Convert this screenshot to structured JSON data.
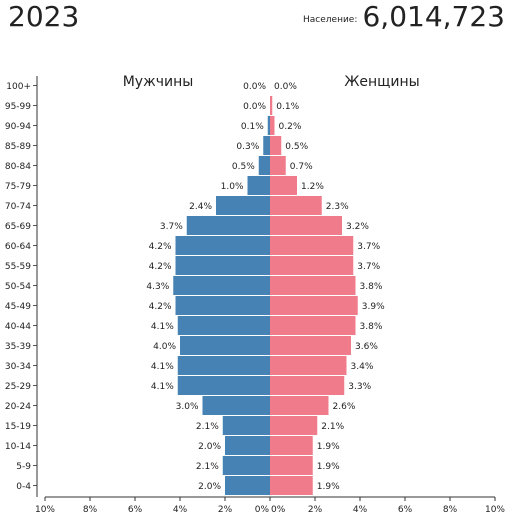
{
  "header": {
    "year": "2023",
    "population_label": "Население:",
    "population_value": "6,014,723"
  },
  "chart_data": {
    "type": "bar",
    "orientation": "horizontal-pyramid",
    "title": "",
    "categories": [
      "100+",
      "95-99",
      "90-94",
      "85-89",
      "80-84",
      "75-79",
      "70-74",
      "65-69",
      "60-64",
      "55-59",
      "50-54",
      "45-49",
      "40-44",
      "35-39",
      "30-34",
      "25-29",
      "20-24",
      "15-19",
      "10-14",
      "5-9",
      "0-4"
    ],
    "series": [
      {
        "name": "Мужчины",
        "color": "#4682b4",
        "values": [
          0.0,
          0.0,
          0.1,
          0.3,
          0.5,
          1.0,
          2.4,
          3.7,
          4.2,
          4.2,
          4.3,
          4.2,
          4.1,
          4.0,
          4.1,
          4.1,
          3.0,
          2.1,
          2.0,
          2.1,
          2.0
        ],
        "labels": [
          "0.0%",
          "0.0%",
          "0.1%",
          "0.3%",
          "0.5%",
          "1.0%",
          "2.4%",
          "3.7%",
          "4.2%",
          "4.2%",
          "4.3%",
          "4.2%",
          "4.1%",
          "4.0%",
          "4.1%",
          "4.1%",
          "3.0%",
          "2.1%",
          "2.0%",
          "2.1%",
          "2.0%"
        ]
      },
      {
        "name": "Женщины",
        "color": "#f07b8b",
        "values": [
          0.0,
          0.1,
          0.2,
          0.5,
          0.7,
          1.2,
          2.3,
          3.2,
          3.7,
          3.7,
          3.8,
          3.9,
          3.8,
          3.6,
          3.4,
          3.3,
          2.6,
          2.1,
          1.9,
          1.9,
          1.9
        ],
        "labels": [
          "0.0%",
          "0.1%",
          "0.2%",
          "0.5%",
          "0.7%",
          "1.2%",
          "2.3%",
          "3.2%",
          "3.7%",
          "3.7%",
          "3.8%",
          "3.9%",
          "3.8%",
          "3.6%",
          "3.4%",
          "3.3%",
          "2.6%",
          "2.1%",
          "1.9%",
          "1.9%",
          "1.9%"
        ]
      }
    ],
    "x_ticks_left": [
      "10%",
      "8%",
      "6%",
      "4%",
      "2%",
      "0%"
    ],
    "x_ticks_right": [
      "0%",
      "2%",
      "4%",
      "6%",
      "8%",
      "10%"
    ],
    "xlim": [
      0,
      10
    ],
    "unit": "%",
    "grid": false,
    "legend": "top-labels"
  }
}
